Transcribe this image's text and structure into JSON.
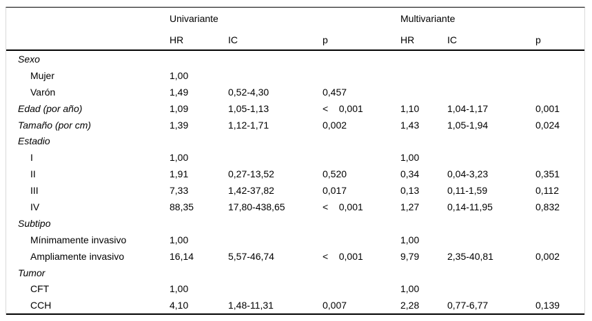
{
  "table": {
    "group_headers": [
      "Univariante",
      "Multivariante"
    ],
    "sub_headers": [
      "HR",
      "IC",
      "p",
      "HR",
      "IC",
      "p"
    ],
    "rows": [
      {
        "label": "Sexo",
        "style": "section",
        "cells": [
          "",
          "",
          "",
          "",
          "",
          ""
        ]
      },
      {
        "label": "Mujer",
        "style": "item",
        "cells": [
          "1,00",
          "",
          "",
          "",
          "",
          ""
        ]
      },
      {
        "label": "Varón",
        "style": "item",
        "cells": [
          "1,49",
          "0,52-4,30",
          "0,457",
          "",
          "",
          ""
        ]
      },
      {
        "label": "Edad (por año)",
        "style": "section",
        "cells": [
          "1,09",
          "1,05-1,13",
          "<    0,001",
          "1,10",
          "1,04-1,17",
          "0,001"
        ]
      },
      {
        "label": "Tamaño (por cm)",
        "style": "section",
        "cells": [
          "1,39",
          "1,12-1,71",
          "0,002",
          "1,43",
          "1,05-1,94",
          "0,024"
        ]
      },
      {
        "label": "Estadio",
        "style": "section",
        "cells": [
          "",
          "",
          "",
          "",
          "",
          ""
        ]
      },
      {
        "label": "I",
        "style": "item",
        "cells": [
          "1,00",
          "",
          "",
          "1,00",
          "",
          ""
        ]
      },
      {
        "label": "II",
        "style": "item",
        "cells": [
          "1,91",
          "0,27-13,52",
          "0,520",
          "0,34",
          "0,04-3,23",
          "0,351"
        ]
      },
      {
        "label": "III",
        "style": "item",
        "cells": [
          "7,33",
          "1,42-37,82",
          "0,017",
          "0,13",
          "0,11-1,59",
          "0,112"
        ]
      },
      {
        "label": "IV",
        "style": "item",
        "cells": [
          "88,35",
          "17,80-438,65",
          "<    0,001",
          "1,27",
          "0,14-11,95",
          "0,832"
        ]
      },
      {
        "label": "Subtipo",
        "style": "section",
        "cells": [
          "",
          "",
          "",
          "",
          "",
          ""
        ]
      },
      {
        "label": "Mínimamente invasivo",
        "style": "item",
        "cells": [
          "1,00",
          "",
          "",
          "1,00",
          "",
          ""
        ]
      },
      {
        "label": "Ampliamente invasivo",
        "style": "item",
        "cells": [
          "16,14",
          "5,57-46,74",
          "<    0,001",
          "9,79",
          "2,35-40,81",
          "0,002"
        ]
      },
      {
        "label": "Tumor",
        "style": "section",
        "cells": [
          "",
          "",
          "",
          "",
          "",
          ""
        ]
      },
      {
        "label": "CFT",
        "style": "item",
        "cells": [
          "1,00",
          "",
          "",
          "1,00",
          "",
          ""
        ]
      },
      {
        "label": "CCH",
        "style": "item",
        "cells": [
          "4,10",
          "1,48-11,31",
          "0,007",
          "2,28",
          "0,77-6,77",
          "0,139"
        ]
      }
    ]
  }
}
